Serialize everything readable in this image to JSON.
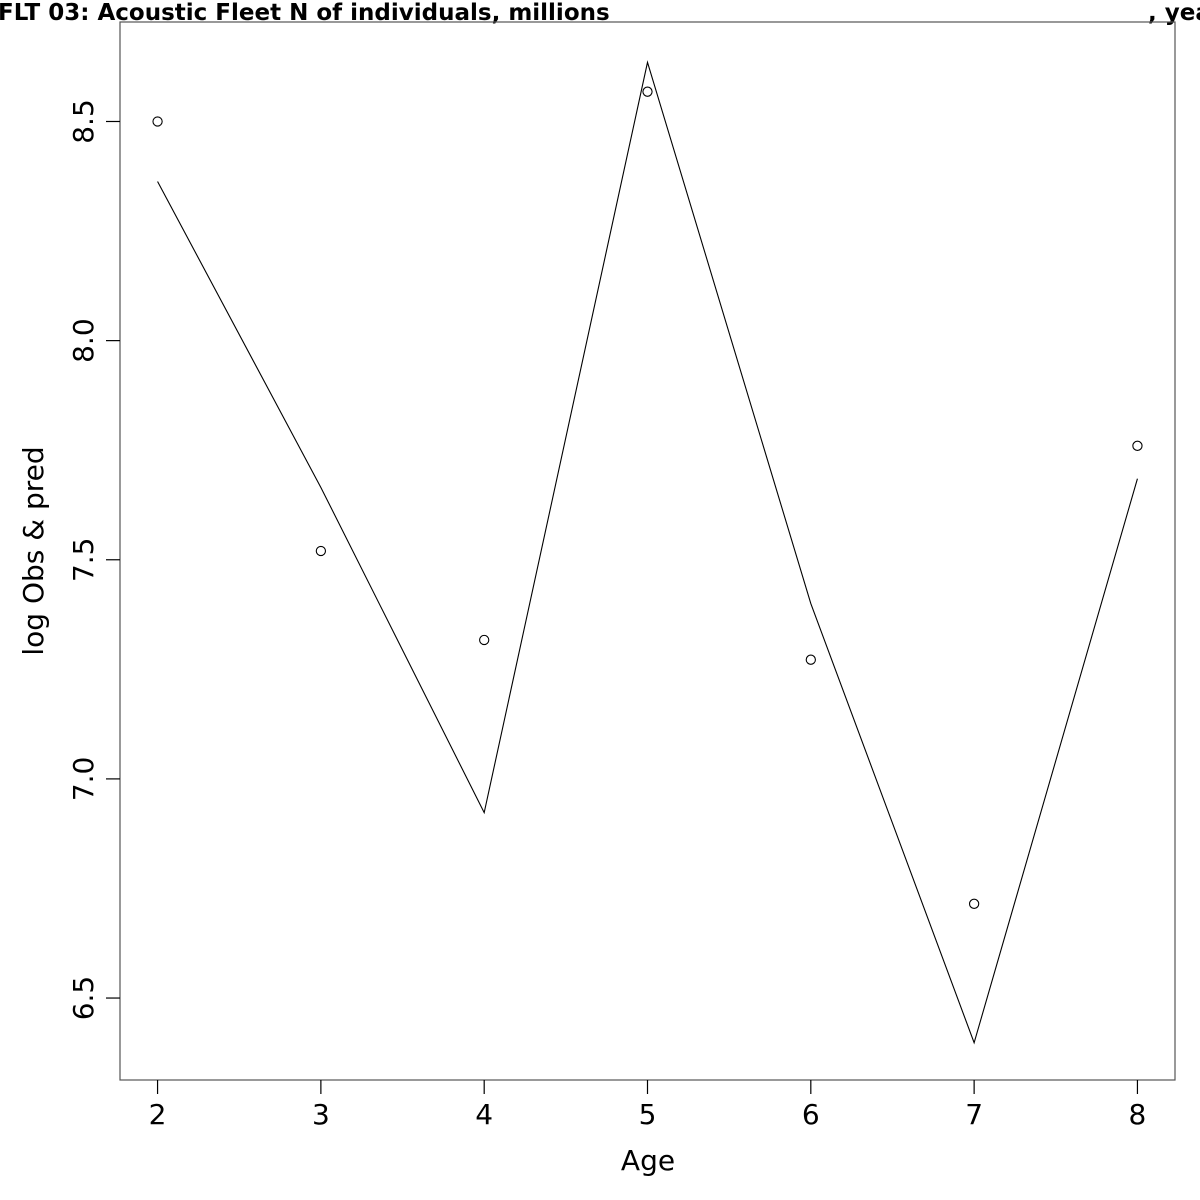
{
  "chart_data": {
    "type": "line",
    "title": "FLT 03: Acoustic Fleet   N of individuals, millions",
    "title_right": ", yea",
    "xlabel": "Age",
    "ylabel": "log Obs & pred",
    "xlim": [
      1.77,
      8.23
    ],
    "ylim": [
      6.313,
      8.727
    ],
    "x_ticks": [
      "2",
      "3",
      "4",
      "5",
      "6",
      "7",
      "8"
    ],
    "y_ticks": [
      "6.5",
      "7.0",
      "7.5",
      "8.0",
      "8.5"
    ],
    "grid": false,
    "series": [
      {
        "style": "points",
        "marker": "open-circle",
        "x": [
          2,
          3,
          4,
          5,
          6,
          7,
          8
        ],
        "y": [
          8.5,
          7.52,
          7.317,
          8.568,
          7.272,
          6.715,
          7.76
        ]
      },
      {
        "style": "line",
        "x": [
          2,
          3,
          4,
          5,
          6,
          7,
          8
        ],
        "y": [
          8.363,
          7.665,
          6.923,
          8.635,
          7.4,
          6.398,
          7.685
        ]
      }
    ]
  }
}
